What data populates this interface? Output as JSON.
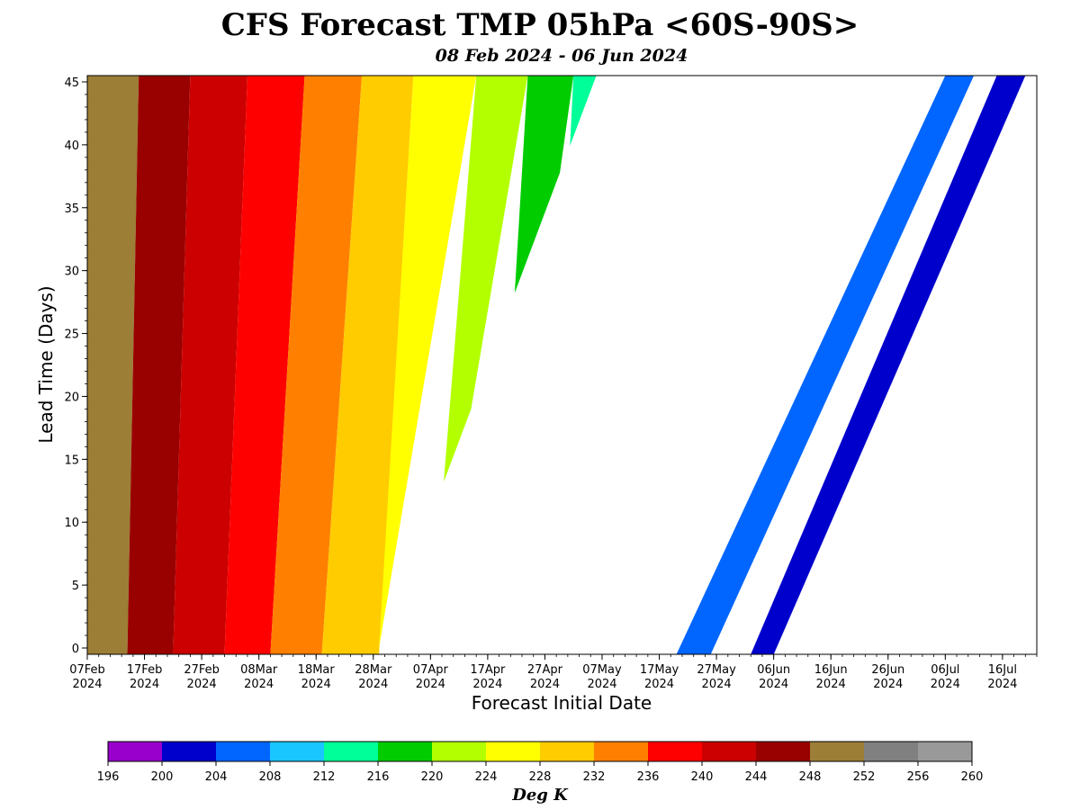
{
  "chart_data": {
    "type": "heatmap",
    "title": "CFS Forecast TMP 05hPa <60S-90S>",
    "subtitle": "08 Feb 2024 - 06 Jun 2024",
    "xlabel": "Forecast Initial Date",
    "ylabel": "Lead Time (Days)",
    "x_ticks": [
      {
        "date": "2024-02-07",
        "label": [
          "07Feb",
          "2024"
        ]
      },
      {
        "date": "2024-02-17",
        "label": [
          "17Feb",
          "2024"
        ]
      },
      {
        "date": "2024-02-27",
        "label": [
          "27Feb",
          "2024"
        ]
      },
      {
        "date": "2024-03-08",
        "label": [
          "08Mar",
          "2024"
        ]
      },
      {
        "date": "2024-03-18",
        "label": [
          "18Mar",
          "2024"
        ]
      },
      {
        "date": "2024-03-28",
        "label": [
          "28Mar",
          "2024"
        ]
      },
      {
        "date": "2024-04-07",
        "label": [
          "07Apr",
          "2024"
        ]
      },
      {
        "date": "2024-04-17",
        "label": [
          "17Apr",
          "2024"
        ]
      },
      {
        "date": "2024-04-27",
        "label": [
          "27Apr",
          "2024"
        ]
      },
      {
        "date": "2024-05-07",
        "label": [
          "07May",
          "2024"
        ]
      },
      {
        "date": "2024-05-17",
        "label": [
          "17May",
          "2024"
        ]
      },
      {
        "date": "2024-05-27",
        "label": [
          "27May",
          "2024"
        ]
      },
      {
        "date": "2024-06-06",
        "label": [
          "06Jun",
          "2024"
        ]
      },
      {
        "date": "2024-06-16",
        "label": [
          "16Jun",
          "2024"
        ]
      },
      {
        "date": "2024-06-26",
        "label": [
          "26Jun",
          "2024"
        ]
      },
      {
        "date": "2024-07-06",
        "label": [
          "06Jul",
          "2024"
        ]
      },
      {
        "date": "2024-07-16",
        "label": [
          "16Jul",
          "2024"
        ]
      }
    ],
    "y_ticks": [
      0,
      5,
      10,
      15,
      20,
      25,
      30,
      35,
      40,
      45
    ],
    "xlim": [
      "2024-02-07",
      "2024-07-22"
    ],
    "ylim": [
      -0.5,
      45.5
    ],
    "colorbar": {
      "label": "Deg K",
      "ticks": [
        196,
        200,
        204,
        208,
        212,
        216,
        220,
        224,
        228,
        232,
        236,
        240,
        244,
        248,
        252,
        256,
        260
      ],
      "colors": [
        "#9900cc",
        "#0000cc",
        "#0066ff",
        "#1ac6ff",
        "#00ff99",
        "#00cc00",
        "#b3ff00",
        "#ffff00",
        "#ffcc00",
        "#ff8000",
        "#ff0000",
        "#cc0000",
        "#990000",
        "#9c7e36",
        "#808080",
        "#999999"
      ]
    },
    "bands": [
      {
        "name": "248-252",
        "color": "#9c7e36",
        "bounds_at_lead0": [
          "2024-02-07",
          "2024-02-14"
        ],
        "bounds_at_lead45": [
          "2024-02-07",
          "2024-02-16"
        ]
      },
      {
        "name": "244-248",
        "color": "#990000",
        "bounds_at_lead0": [
          "2024-02-14",
          "2024-02-22"
        ],
        "bounds_at_lead45": [
          "2024-02-16",
          "2024-02-25"
        ]
      },
      {
        "name": "240-244",
        "color": "#cc0000",
        "bounds_at_lead0": [
          "2024-02-22",
          "2024-03-02"
        ],
        "bounds_at_lead45": [
          "2024-02-25",
          "2024-03-06"
        ]
      },
      {
        "name": "236-240",
        "color": "#ff0000",
        "bounds_at_lead0": [
          "2024-03-02",
          "2024-03-10"
        ],
        "bounds_at_lead45": [
          "2024-03-06",
          "2024-03-16"
        ]
      },
      {
        "name": "232-236",
        "color": "#ff8000",
        "bounds_at_lead0": [
          "2024-03-10",
          "2024-03-19"
        ],
        "bounds_at_lead45": [
          "2024-03-16",
          "2024-03-26"
        ]
      },
      {
        "name": "228-232",
        "color": "#ffcc00",
        "bounds_at_lead0": [
          "2024-03-19",
          "2024-03-29"
        ],
        "bounds_at_lead45": [
          "2024-03-26",
          "2024-04-04"
        ]
      },
      {
        "name": "224-228",
        "color": "#ffff00",
        "bounds_at_lead_start": [
          "2024-03-29",
          "2024-03-29"
        ],
        "bounds_at_lead45": [
          "2024-04-04",
          "2024-04-15"
        ]
      },
      {
        "name": "220-224",
        "color": "#b3ff00",
        "bounds_at_lead_start": [
          "2024-04-07",
          "2024-04-07"
        ],
        "bounds_at_lead45": [
          "2024-04-15",
          "2024-04-24"
        ]
      },
      {
        "name": "216-220",
        "color": "#00cc00",
        "bounds_at_lead_start": [
          "2024-04-18",
          "2024-04-18"
        ],
        "bounds_at_lead45": [
          "2024-04-24",
          "2024-05-02"
        ]
      },
      {
        "name": "212-216",
        "color": "#00ff99",
        "bounds_at_lead_start": [
          "2024-04-27",
          "2024-04-27"
        ],
        "bounds_at_lead45": [
          "2024-05-02",
          "2024-05-06"
        ]
      }
    ],
    "diagonal_bands": [
      {
        "color": "#0066ff",
        "lead0": [
          "2024-05-20",
          "2024-05-26"
        ],
        "lead45": [
          "2024-07-06",
          "2024-07-11"
        ]
      },
      {
        "color": "#0000cc",
        "lead0": [
          "2024-06-02",
          "2024-06-06"
        ],
        "lead45": [
          "2024-07-15",
          "2024-07-20"
        ]
      }
    ],
    "missing_region": "white (no data)"
  }
}
